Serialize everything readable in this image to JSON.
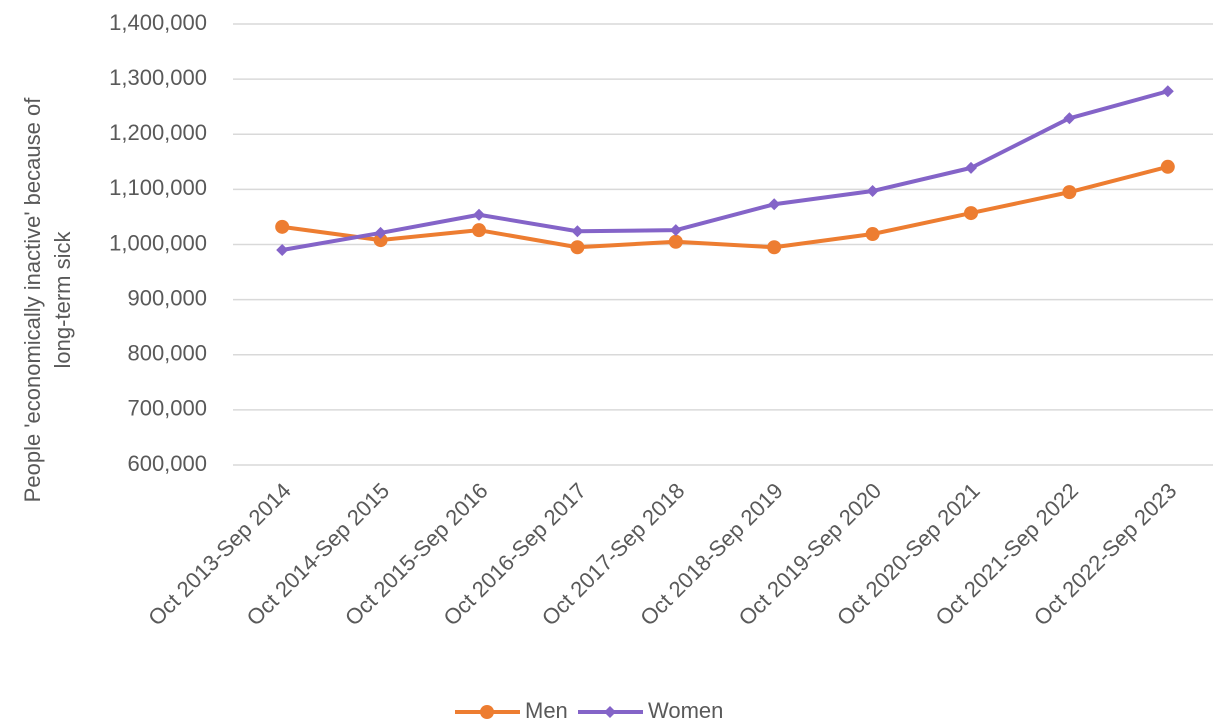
{
  "chart_data": {
    "type": "line",
    "y_label": [
      "People 'economically inactive' because of",
      "long-term sick"
    ],
    "categories": [
      "Oct 2013-Sep 2014",
      "Oct 2014-Sep 2015",
      "Oct 2015-Sep 2016",
      "Oct 2016-Sep 2017",
      "Oct 2017-Sep 2018",
      "Oct 2018-Sep 2019",
      "Oct 2019-Sep 2020",
      "Oct 2020-Sep 2021",
      "Oct 2021-Sep 2022",
      "Oct 2022-Sep 2023"
    ],
    "series": [
      {
        "name": "Men",
        "color": "#ED7D31",
        "marker": "circle",
        "values": [
          1032000,
          1008000,
          1026000,
          995000,
          1005000,
          995000,
          1019000,
          1057000,
          1095000,
          1141000
        ]
      },
      {
        "name": "Women",
        "color": "#8464C8",
        "marker": "diamond",
        "values": [
          990000,
          1021000,
          1054000,
          1024000,
          1026000,
          1073000,
          1097000,
          1139000,
          1229000,
          1278000
        ]
      }
    ],
    "ylim": [
      600000,
      1400000
    ],
    "yticks": [
      {
        "value": 600000,
        "label": "600,000"
      },
      {
        "value": 700000,
        "label": "700,000"
      },
      {
        "value": 800000,
        "label": "800,000"
      },
      {
        "value": 900000,
        "label": "900,000"
      },
      {
        "value": 1000000,
        "label": "1,000,000"
      },
      {
        "value": 1100000,
        "label": "1,100,000"
      },
      {
        "value": 1200000,
        "label": "1,200,000"
      },
      {
        "value": 1300000,
        "label": "1,300,000"
      },
      {
        "value": 1400000,
        "label": "1,400,000"
      }
    ],
    "grid": true,
    "legend": "bottom"
  }
}
